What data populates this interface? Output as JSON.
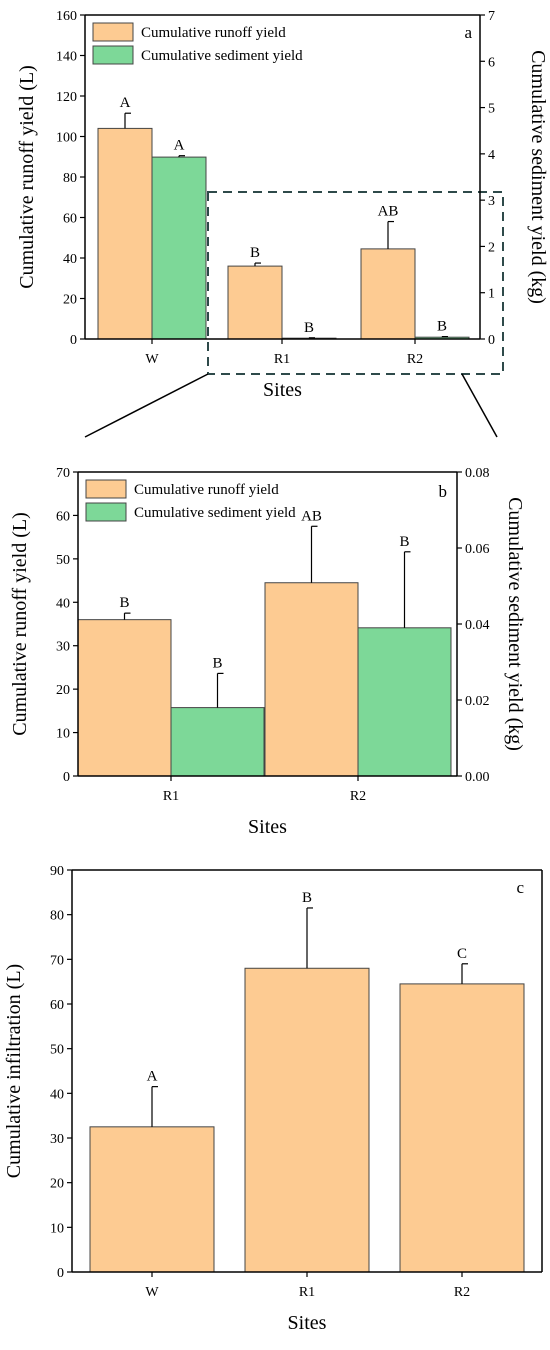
{
  "colors": {
    "runoff": "#FDCB92",
    "sediment": "#7DD898",
    "axis": "#000000",
    "zoom_box": "#2E4A4A"
  },
  "chart_data": [
    {
      "panel": "a",
      "type": "bar",
      "categories": [
        "W",
        "R1",
        "R2"
      ],
      "xlabel": "Sites",
      "ylabel": "Cumulative runoff yield (L)",
      "y2label": "Cumulative sediment yield (kg)",
      "ylim": [
        0,
        160
      ],
      "yticks": [
        "0",
        "20",
        "40",
        "60",
        "80",
        "100",
        "120",
        "140",
        "160"
      ],
      "y2lim": [
        0,
        7
      ],
      "y2ticks": [
        "0",
        "1",
        "2",
        "3",
        "4",
        "5",
        "6",
        "7"
      ],
      "legend_position": "top-left",
      "series": [
        {
          "name": "Cumulative runoff yield",
          "axis": "left",
          "values": [
            104,
            36,
            44.5
          ],
          "error": [
            7.5,
            1.5,
            13.5
          ],
          "letters": [
            "A",
            "B",
            "AB"
          ]
        },
        {
          "name": "Cumulative sediment yield",
          "axis": "right",
          "values": [
            3.93,
            0.018,
            0.039
          ],
          "error": [
            0.03,
            0.008,
            0.013
          ],
          "letters": [
            "A",
            "B",
            "B"
          ]
        }
      ]
    },
    {
      "panel": "b",
      "type": "bar",
      "categories": [
        "R1",
        "R2"
      ],
      "xlabel": "Sites",
      "ylabel": "Cumulative runoff yield (L)",
      "y2label": "Cumulative sediment yield (kg)",
      "ylim": [
        0,
        70
      ],
      "yticks": [
        "0",
        "10",
        "20",
        "30",
        "40",
        "50",
        "60",
        "70"
      ],
      "y2lim": [
        0,
        0.08
      ],
      "y2ticks": [
        "0.00",
        "0.02",
        "0.04",
        "0.06",
        "0.08"
      ],
      "legend_position": "top-left",
      "series": [
        {
          "name": "Cumulative runoff yield",
          "axis": "left",
          "values": [
            36,
            44.5
          ],
          "error": [
            1.5,
            13
          ],
          "letters": [
            "B",
            "AB"
          ]
        },
        {
          "name": "Cumulative sediment yield",
          "axis": "right",
          "values": [
            0.018,
            0.039
          ],
          "error": [
            0.009,
            0.02
          ],
          "letters": [
            "B",
            "B"
          ]
        }
      ]
    },
    {
      "panel": "c",
      "type": "bar",
      "categories": [
        "W",
        "R1",
        "R2"
      ],
      "xlabel": "Sites",
      "ylabel": "Cumulative infiltration (L)",
      "ylim": [
        0,
        90
      ],
      "yticks": [
        "0",
        "10",
        "20",
        "30",
        "40",
        "50",
        "60",
        "70",
        "80",
        "90"
      ],
      "series": [
        {
          "axis": "left",
          "values": [
            32.5,
            68,
            64.5
          ],
          "error": [
            9,
            13.5,
            4.5
          ],
          "letters": [
            "A",
            "B",
            "C"
          ]
        }
      ]
    }
  ]
}
